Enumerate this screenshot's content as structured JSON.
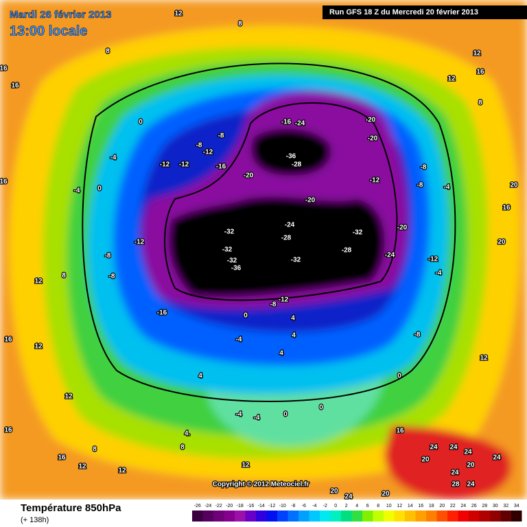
{
  "header": {
    "date": "Mardi 26 février 2013",
    "time": "13:00 locale",
    "run": "Run GFS 18 Z du Mercredi 20 février 2013"
  },
  "map": {
    "copyright": "Copyright © 2012 Meteociel.fr",
    "contour_labels": [
      "12",
      "8",
      "8",
      "16",
      "16",
      "16",
      "0",
      "-4",
      "-4",
      "0",
      "-12",
      "-12",
      "-8",
      "-12",
      "-8",
      "-16",
      "-20",
      "-16",
      "-24",
      "-36",
      "-28",
      "-20",
      "-20",
      "-12",
      "-8",
      "-8",
      "-4",
      "20",
      "16",
      "20",
      "-20",
      "-24",
      "-28",
      "-32",
      "-32",
      "-32",
      "-36",
      "-32",
      "-32",
      "-28",
      "-24",
      "-20",
      "-12",
      "-4",
      "-12",
      "-8",
      "-8",
      "8",
      "12",
      "-12",
      "-8",
      "0",
      "-16",
      "16",
      "12",
      "-4",
      "4",
      "4",
      "4",
      "0",
      "-8",
      "4",
      "-4",
      "-4",
      "0",
      "0",
      "16",
      "8",
      "4.",
      "12",
      "20",
      "24",
      "24",
      "24",
      "24",
      "20",
      "20",
      "24",
      "24",
      "28",
      "24",
      "20",
      "12",
      "16",
      "12",
      "8",
      "12",
      "16",
      "16",
      "12",
      "12",
      "8",
      "12"
    ]
  },
  "footer": {
    "title": "Température 850hPa",
    "subtitle": "(+ 138h)"
  },
  "legend": {
    "ticks": [
      -26,
      -24,
      -22,
      -20,
      -18,
      -16,
      -14,
      -12,
      -10,
      -8,
      -6,
      -4,
      -2,
      0,
      2,
      4,
      6,
      8,
      10,
      12,
      14,
      16,
      18,
      20,
      22,
      24,
      26,
      28,
      30,
      32,
      34
    ],
    "colors": [
      "#3a0040",
      "#55005f",
      "#6e0078",
      "#86008f",
      "#9a10a8",
      "#6a00c8",
      "#3000e0",
      "#0010f0",
      "#0040ff",
      "#0070ff",
      "#00a0ff",
      "#00c8ff",
      "#00e8f0",
      "#00f0c0",
      "#00e080",
      "#30e040",
      "#80f000",
      "#c0ff00",
      "#f0ff00",
      "#ffe000",
      "#ffc000",
      "#ffa000",
      "#ff8000",
      "#ff5000",
      "#ff2000",
      "#f00000",
      "#d00000",
      "#b00000",
      "#900000",
      "#600000",
      "#300000"
    ]
  }
}
